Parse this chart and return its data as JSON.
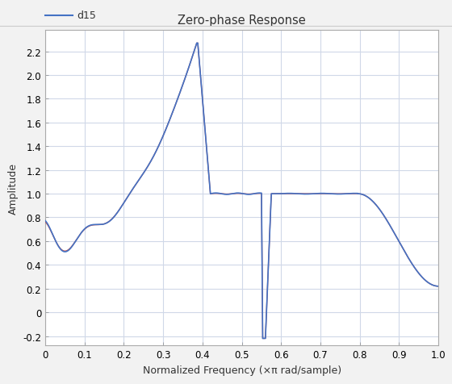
{
  "title": "Zero-phase Response",
  "xlabel": "Normalized Frequency (×π rad/sample)",
  "ylabel": "Amplitude",
  "legend_label": "d15",
  "line1_color": "#4472c4",
  "line2_color": "#c0504d",
  "axes_bg_color": "#ffffff",
  "fig_bg_color": "#f2f2f2",
  "grid_color": "#d0d8e8",
  "xlim": [
    0,
    1
  ],
  "ylim": [
    -0.28,
    2.38
  ],
  "yticks": [
    -0.2,
    0.0,
    0.2,
    0.4,
    0.6,
    0.8,
    1.0,
    1.2,
    1.4,
    1.6,
    1.8,
    2.0,
    2.2
  ],
  "xticks": [
    0.0,
    0.1,
    0.2,
    0.3,
    0.4,
    0.5,
    0.6,
    0.7,
    0.8,
    0.9,
    1.0
  ],
  "figsize": [
    5.6,
    4.77
  ],
  "dpi": 100
}
